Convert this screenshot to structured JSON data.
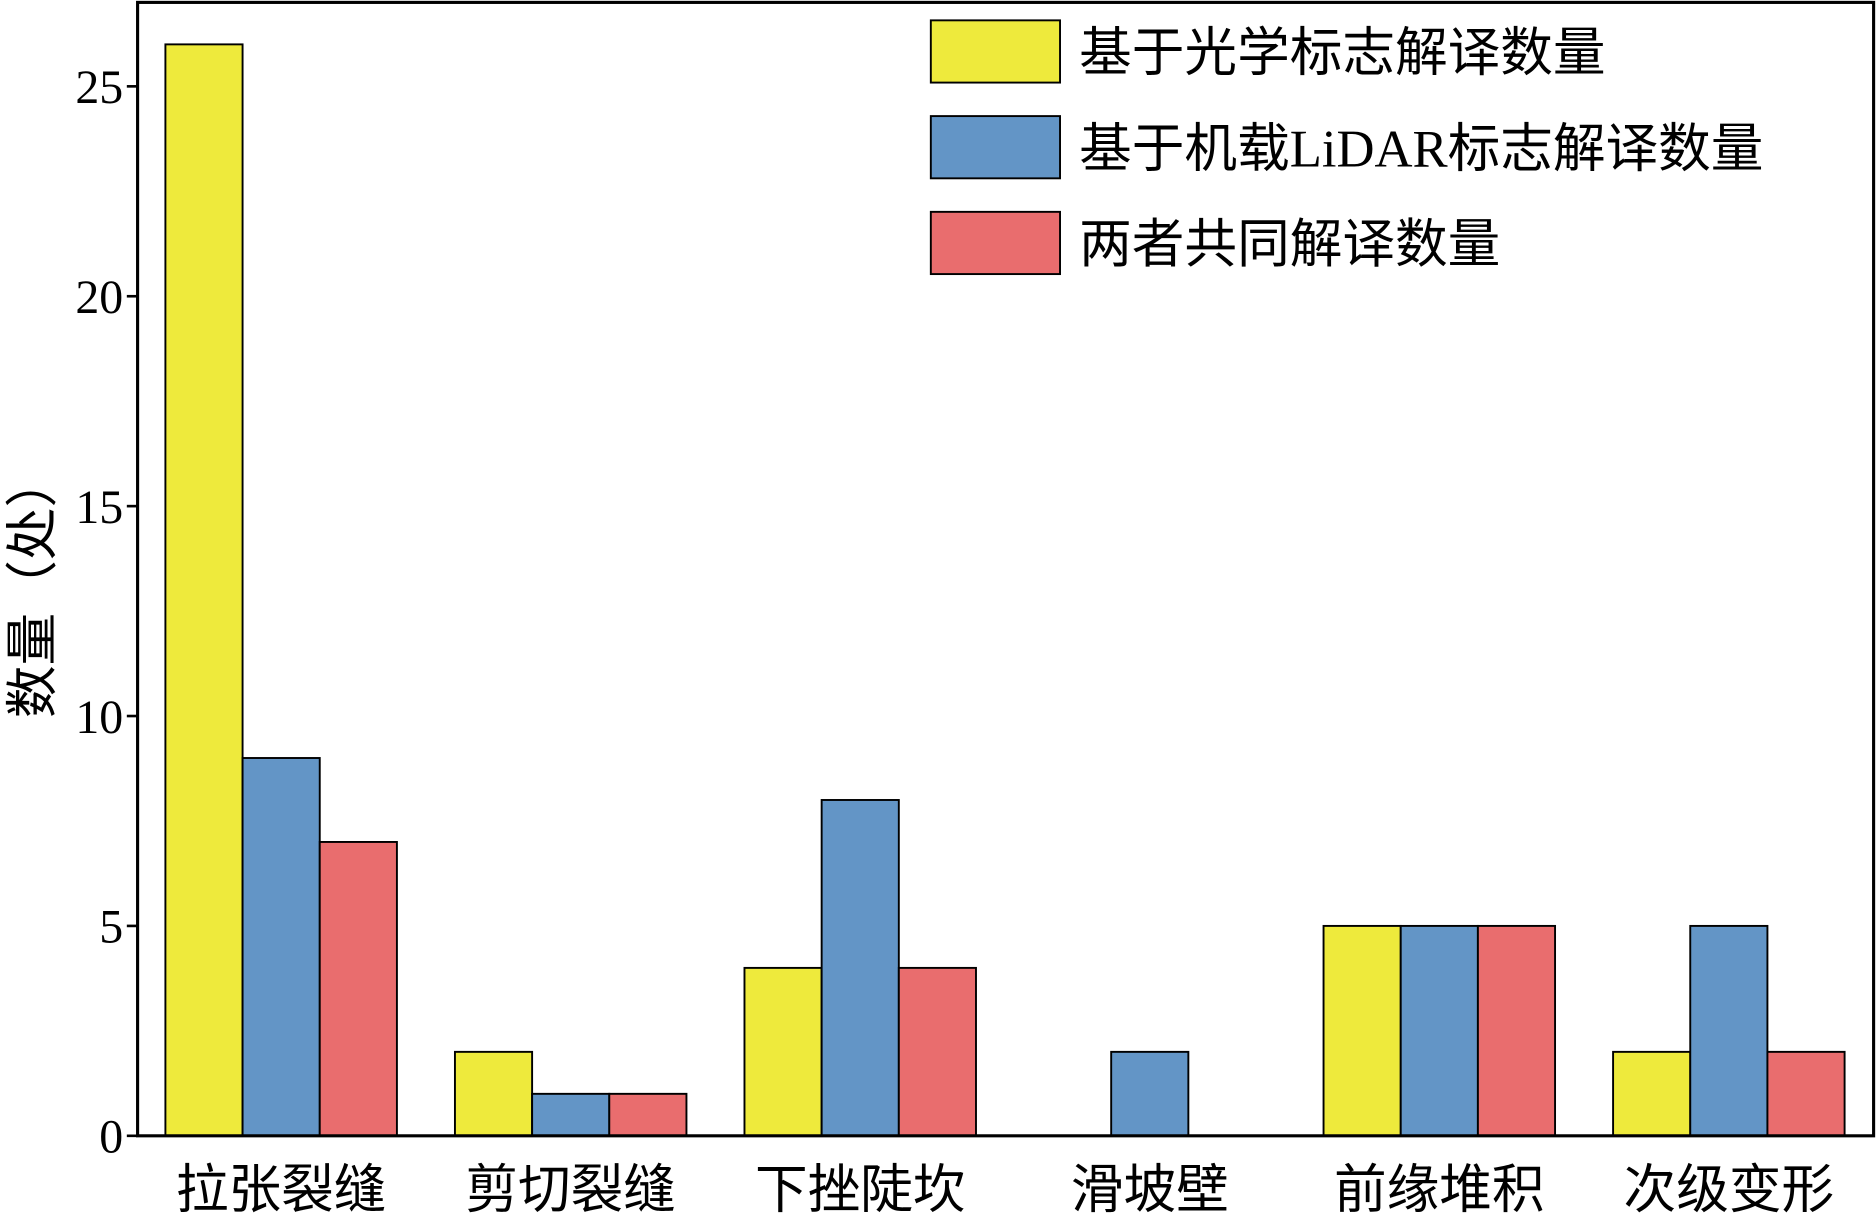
{
  "chart_data": {
    "type": "bar",
    "categories": [
      "拉张裂缝",
      "剪切裂缝",
      "下挫陡坎",
      "滑坡壁",
      "前缘堆积",
      "次级变形"
    ],
    "series": [
      {
        "name": "基于光学标志解译数量",
        "values": [
          26,
          2,
          4,
          0,
          5,
          2
        ],
        "color": "#eeea3c"
      },
      {
        "name": "基于机载LiDAR标志解译数量",
        "values": [
          9,
          1,
          8,
          2,
          5,
          5
        ],
        "color": "#6395c6"
      },
      {
        "name": "两者共同解译数量",
        "values": [
          7,
          1,
          4,
          0,
          5,
          2
        ],
        "color": "#e96d6e"
      }
    ],
    "xlabel": "",
    "ylabel": "数量（处）",
    "ylim": [
      0,
      27
    ],
    "yticks": [
      0,
      5,
      10,
      15,
      20,
      25
    ],
    "grid": false,
    "legend_position": "top-right"
  }
}
